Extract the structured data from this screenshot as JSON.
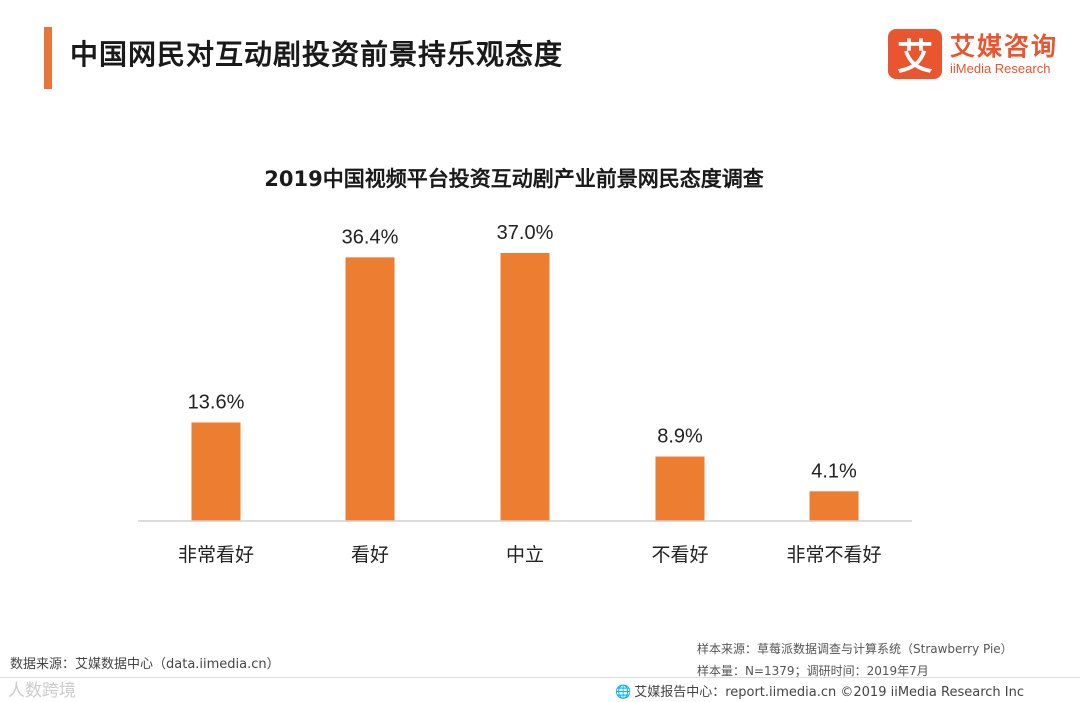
{
  "header": {
    "title": "中国网民对互动剧投资前景持乐观态度"
  },
  "logo": {
    "mark": "艾",
    "name_cn": "艾媒咨询",
    "name_en": "iiMedia Research"
  },
  "colors": {
    "accent": "#E8753A",
    "bar": "#ED7D31",
    "logo": "#E8552E"
  },
  "chart_data": {
    "type": "bar",
    "title": "2019中国视频平台投资互动剧产业前景网民态度调查",
    "categories": [
      "非常看好",
      "看好",
      "中立",
      "不看好",
      "非常不看好"
    ],
    "values": [
      13.6,
      36.4,
      37.0,
      8.9,
      4.1
    ],
    "value_labels": [
      "13.6%",
      "36.4%",
      "37.0%",
      "8.9%",
      "4.1%"
    ],
    "unit": "%",
    "xlabel": "",
    "ylabel": "",
    "ylim": [
      0,
      37.0
    ],
    "grid": false,
    "legend": "none"
  },
  "footer": {
    "source_left": "数据来源：艾媒数据中心（data.iimedia.cn）",
    "sample_source": "样本来源：草莓派数据调查与计算系统（Strawberry Pie）",
    "sample_size": "样本量：N=1379；调研时间：2019年7月",
    "report_center": "艾媒报告中心：report.iimedia.cn  ©2019  iiMedia Research  Inc",
    "watermark": "人数跨境"
  }
}
